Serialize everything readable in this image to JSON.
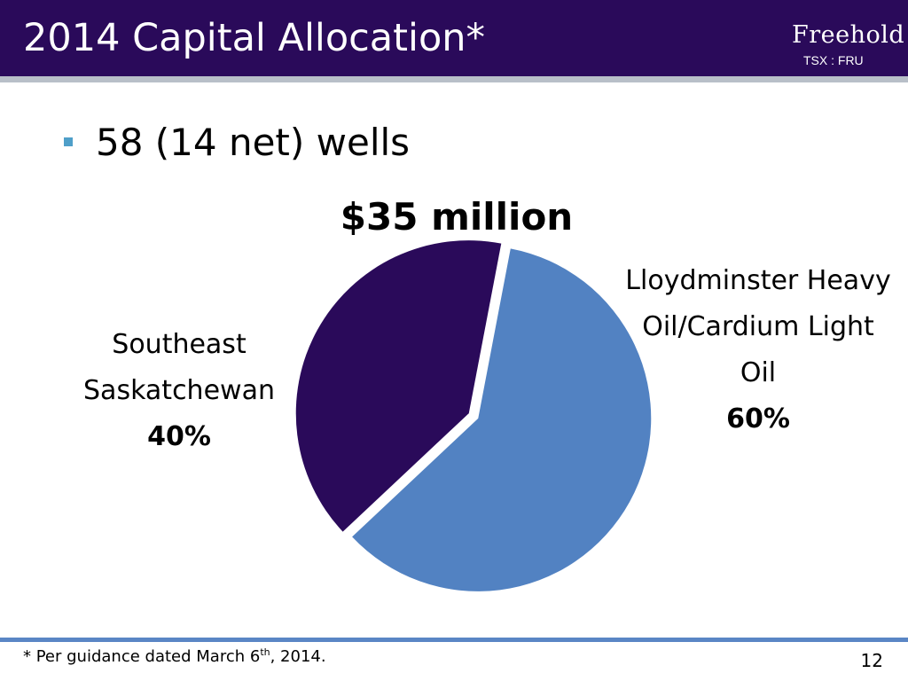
{
  "slide": {
    "title": "2014 Capital Allocation*",
    "logo": "Freehold",
    "ticker": "TSX : FRU",
    "bullet": "58 (14 net) wells",
    "footnote": {
      "before": "* Per guidance dated March 6",
      "sup": "th",
      "after": ", 2014."
    },
    "page_number": "12"
  },
  "colors": {
    "header_bg": "#2a0a5a",
    "bullet": "#4f9fc9",
    "footer_rule": "#5a86c5"
  },
  "chart_data": {
    "type": "pie",
    "title": "$35 million",
    "slices": [
      {
        "label_lines": [
          "Lloydminster Heavy",
          "Oil/Cardium Light",
          "Oil"
        ],
        "percent_label": "60%",
        "value": 60,
        "color": "#5282c2"
      },
      {
        "label_lines": [
          "Southeast",
          "Saskatchewan"
        ],
        "percent_label": "40%",
        "value": 40,
        "color": "#2a0a5a"
      }
    ]
  }
}
